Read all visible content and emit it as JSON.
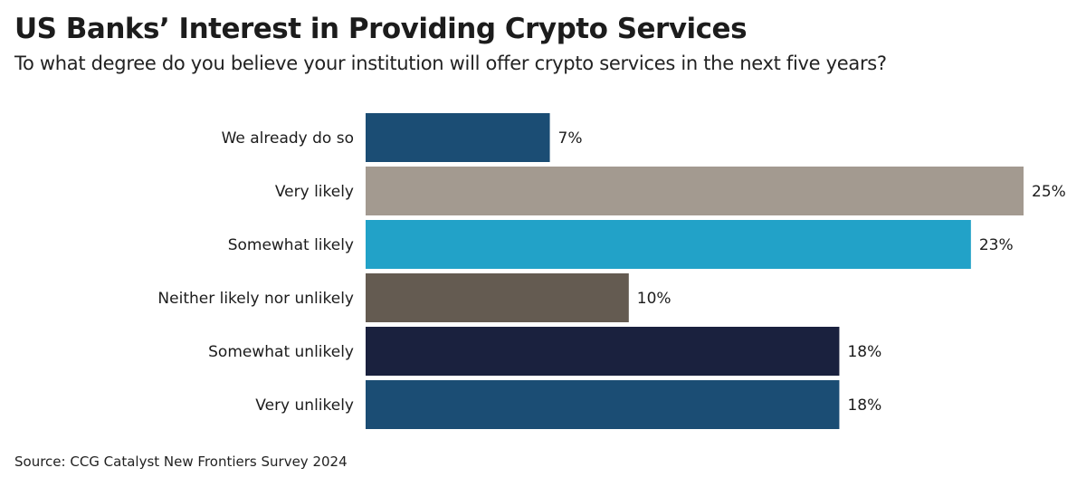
{
  "header": {
    "title": "US Banks’ Interest in Providing Crypto Services",
    "subtitle": "To what degree do you believe your institution will offer crypto services in the next five years?"
  },
  "footer": {
    "source": "Source: CCG Catalyst New Frontiers Survey 2024"
  },
  "chart_data": {
    "type": "bar",
    "orientation": "horizontal",
    "title": "US Banks’ Interest in Providing Crypto Services",
    "subtitle": "To what degree do you believe your institution will offer crypto services in the next five years?",
    "xlabel": "",
    "ylabel": "",
    "unit": "%",
    "xlim": [
      0,
      25
    ],
    "grid": false,
    "legend": "none",
    "categories": [
      "We already do so",
      "Very likely",
      "Somewhat likely",
      "Neither likely nor unlikely",
      "Somewhat unlikely",
      "Very unlikely"
    ],
    "values": [
      7,
      25,
      23,
      10,
      18,
      18
    ],
    "value_labels": [
      "7%",
      "25%",
      "23%",
      "10%",
      "18%",
      "18%"
    ],
    "colors": [
      "#1b4d74",
      "#a39a90",
      "#22a2c8",
      "#645b51",
      "#1a213e",
      "#1b4d74"
    ],
    "source": "Source: CCG Catalyst New Frontiers Survey 2024"
  }
}
